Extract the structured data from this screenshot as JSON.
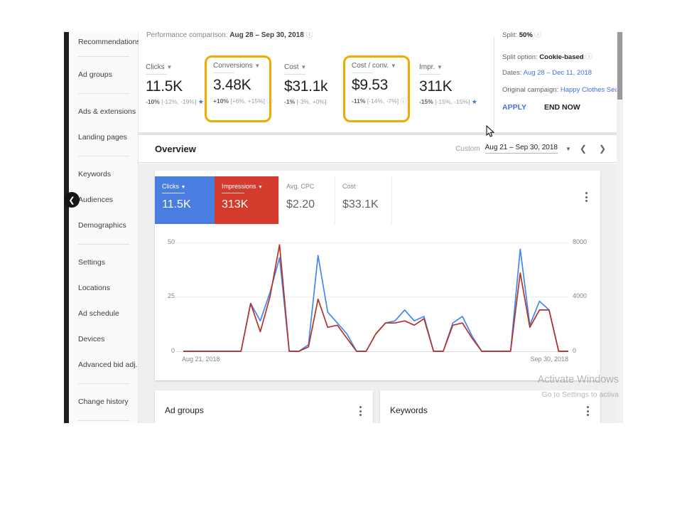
{
  "comparison": {
    "label": "Performance comparison:",
    "range": "Aug 28 – Sep 30, 2018"
  },
  "metrics": [
    {
      "label": "Clicks",
      "value": "11.5K",
      "delta": "-10%",
      "range": "[-12%, -19%]",
      "marker": "star",
      "highlight": false
    },
    {
      "label": "Conversions",
      "value": "3.48K",
      "delta": "+10%",
      "range": "[+6%, +15%]",
      "marker": "info",
      "highlight": true
    },
    {
      "label": "Cost",
      "value": "$31.1k",
      "delta": "-1%",
      "range": "[-3%, +0%]",
      "marker": "",
      "highlight": false
    },
    {
      "label": "Cost / conv.",
      "value": "$9.53",
      "delta": "-11%",
      "range": "[-14%, -7%]",
      "marker": "info",
      "highlight": true
    },
    {
      "label": "Impr.",
      "value": "311K",
      "delta": "-15%",
      "range": "[-15%, -15%]",
      "marker": "star",
      "highlight": false
    }
  ],
  "split_panel": {
    "split_label": "Split:",
    "split_value": "50%",
    "option_label": "Split option:",
    "option_value": "Cookie-based",
    "dates_label": "Dates:",
    "dates_value": "Aug 28 – Dec 11, 2018",
    "campaign_label": "Original campaign:",
    "campaign_value": "Happy Clothes Sear...",
    "apply": "APPLY",
    "end_now": "END NOW"
  },
  "sidebar": {
    "items": [
      {
        "type": "item",
        "label": "Recommendations"
      },
      {
        "type": "divider"
      },
      {
        "type": "item",
        "label": "Ad groups"
      },
      {
        "type": "divider"
      },
      {
        "type": "item",
        "label": "Ads & extensions"
      },
      {
        "type": "item",
        "label": "Landing pages"
      },
      {
        "type": "divider"
      },
      {
        "type": "item",
        "label": "Keywords"
      },
      {
        "type": "item",
        "label": "Audiences"
      },
      {
        "type": "item",
        "label": "Demographics"
      },
      {
        "type": "divider"
      },
      {
        "type": "item",
        "label": "Settings"
      },
      {
        "type": "item",
        "label": "Locations"
      },
      {
        "type": "item",
        "label": "Ad schedule"
      },
      {
        "type": "item",
        "label": "Devices"
      },
      {
        "type": "item",
        "label": "Advanced bid adj."
      },
      {
        "type": "divider"
      },
      {
        "type": "item",
        "label": "Change history"
      },
      {
        "type": "divider"
      }
    ]
  },
  "overview": {
    "title": "Overview",
    "range_type": "Custom",
    "range": "Aug 21 – Sep 30, 2018"
  },
  "chart_card": {
    "tabs": [
      {
        "label": "Clicks",
        "value": "11.5K",
        "style": "blue",
        "dropdown": true
      },
      {
        "label": "Impressions",
        "value": "313K",
        "style": "red",
        "dropdown": true
      },
      {
        "label": "Avg. CPC",
        "value": "$2.20",
        "style": "plain",
        "dropdown": false
      },
      {
        "label": "Cost",
        "value": "$33.1K",
        "style": "plain",
        "dropdown": false
      }
    ]
  },
  "bottom_cards": {
    "ad_groups": "Ad groups",
    "keywords": "Keywords"
  },
  "watermark": {
    "line1": "Activate Windows",
    "line2": "Go to Settings to activa"
  },
  "colors": {
    "tab_blue": "#4a7de0",
    "tab_red": "#d33b2c",
    "line_blue": "#4285f4",
    "line_red": "#b63328",
    "highlight_yellow": "#f0ab00",
    "link_blue": "#4272db"
  },
  "chart_data": {
    "type": "line",
    "title": "",
    "x_start": "Aug 21, 2018",
    "x_end": "Sep 30, 2018",
    "grid": true,
    "left_axis": {
      "name": "Clicks",
      "ticks": [
        0,
        25,
        50
      ],
      "max": 50
    },
    "right_axis": {
      "name": "Impressions",
      "ticks": [
        0,
        4000,
        8000
      ],
      "max": 8000
    },
    "series": [
      {
        "name": "Clicks",
        "axis": "left",
        "color": "#4285f4",
        "values": [
          0,
          0,
          0,
          0,
          0,
          0,
          0,
          22,
          14,
          27,
          43,
          0,
          0,
          3,
          44,
          18,
          13,
          8,
          0,
          0,
          8,
          13,
          14,
          19,
          14,
          16,
          0,
          0,
          13,
          16,
          7,
          0,
          0,
          0,
          0,
          47,
          12,
          23,
          19,
          0,
          0
        ]
      },
      {
        "name": "Impressions",
        "axis": "right",
        "color": "#b63328",
        "values": [
          0,
          0,
          0,
          0,
          0,
          0,
          0,
          3520,
          1440,
          4000,
          7840,
          0,
          0,
          320,
          3840,
          1760,
          1920,
          960,
          0,
          0,
          1280,
          2080,
          2080,
          2240,
          1920,
          2400,
          0,
          0,
          1920,
          2080,
          960,
          0,
          0,
          0,
          0,
          5760,
          1760,
          3040,
          3040,
          0,
          0
        ]
      }
    ]
  }
}
